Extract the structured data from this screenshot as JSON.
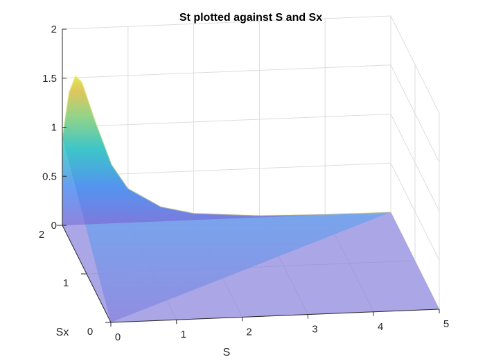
{
  "chart_data": {
    "type": "surface",
    "title": "St plotted against S and Sx",
    "xlabel": "S",
    "ylabel": "Sx",
    "zlabel": "",
    "xlim": [
      0,
      5
    ],
    "ylim": [
      0,
      2
    ],
    "zlim": [
      0,
      2
    ],
    "x_ticks": [
      "0",
      "1",
      "2",
      "3",
      "4",
      "5"
    ],
    "y_ticks": [
      "0",
      "1",
      "2"
    ],
    "z_ticks": [
      "0",
      "0.5",
      "1",
      "1.5",
      "2"
    ],
    "grid": true,
    "colormap": "parula",
    "face_alpha": 0.5,
    "approx_profile_at_Sx_2": {
      "S": [
        0,
        0.1,
        0.2,
        0.3,
        0.5,
        0.75,
        1.0,
        1.5,
        2.0,
        3.0,
        4.0,
        5.0
      ],
      "St": [
        0.9,
        1.35,
        1.52,
        1.45,
        1.05,
        0.6,
        0.35,
        0.15,
        0.07,
        0.02,
        0.005,
        0.0
      ]
    },
    "St_at_Sx_0": 0
  }
}
